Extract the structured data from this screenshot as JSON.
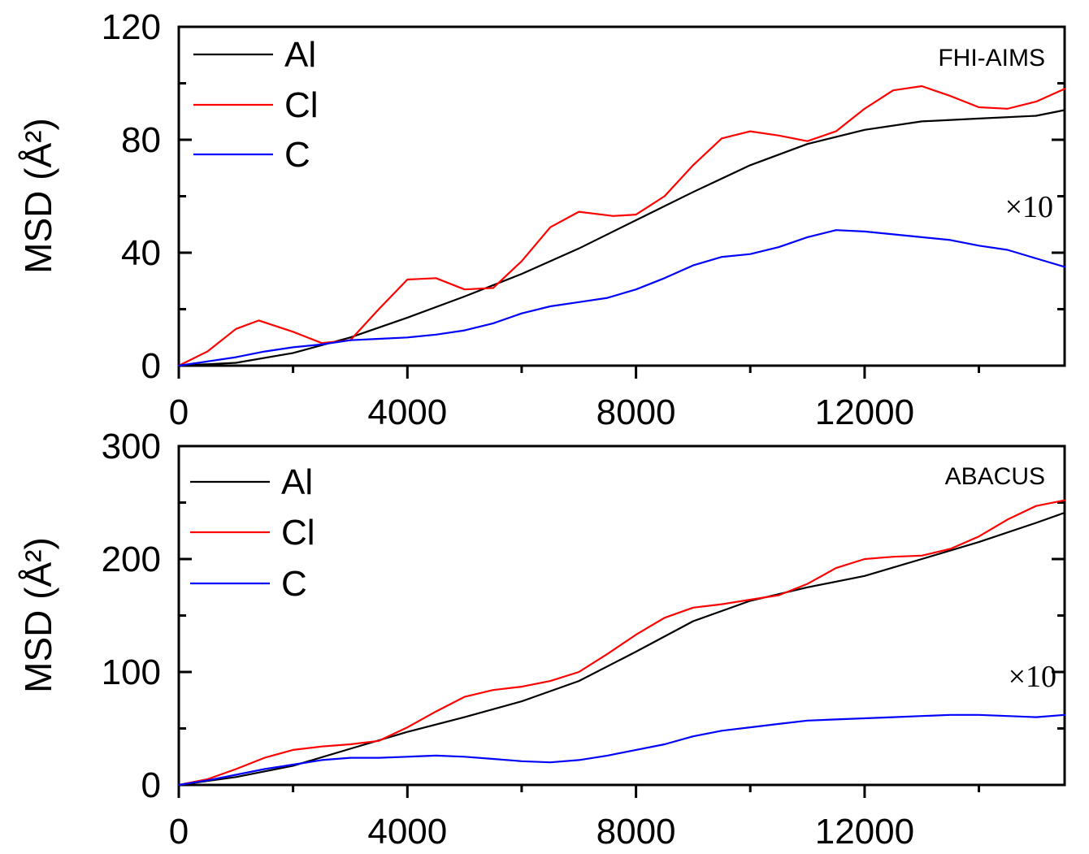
{
  "chart_data": [
    {
      "type": "line",
      "annotation": "FHI-AIMS",
      "scale_note": "×10",
      "xlabel": "",
      "ylabel": "MSD (Å²)",
      "xlim": [
        0,
        15500
      ],
      "ylim": [
        0,
        120
      ],
      "xticks": [
        "0",
        "4000",
        "8000",
        "12000"
      ],
      "yticks": [
        "0",
        "40",
        "80",
        "120"
      ],
      "legend": [
        "Al",
        "Cl",
        "C"
      ],
      "colors": {
        "Al": "#000000",
        "Cl": "#ff0000",
        "C": "#0000ff"
      },
      "series": [
        {
          "name": "Al",
          "x": [
            0,
            1000,
            2000,
            3000,
            4000,
            5000,
            6000,
            7000,
            8000,
            9000,
            10000,
            11000,
            12000,
            13000,
            14000,
            15000,
            15500
          ],
          "values": [
            0,
            1,
            4.5,
            10,
            17,
            24.5,
            32.5,
            41.5,
            51.5,
            61.5,
            71,
            78.5,
            83.5,
            86.5,
            87.5,
            88.5,
            90.5
          ]
        },
        {
          "name": "Cl",
          "x": [
            0,
            500,
            1000,
            1400,
            2000,
            2500,
            3000,
            3500,
            4000,
            4500,
            5000,
            5500,
            6000,
            6500,
            7000,
            7600,
            8000,
            8500,
            9000,
            9500,
            10000,
            10500,
            11000,
            11500,
            12000,
            12500,
            13000,
            13500,
            14000,
            14500,
            15000,
            15500
          ],
          "values": [
            0,
            5,
            13,
            16,
            12,
            8,
            9,
            20,
            30.5,
            31,
            27,
            27.5,
            37,
            49,
            54.5,
            53,
            53.5,
            60,
            71,
            80.5,
            83,
            81.5,
            79.5,
            83,
            91,
            97.5,
            99,
            95.5,
            91.5,
            91,
            93.5,
            98
          ]
        },
        {
          "name": "C",
          "x": [
            0,
            500,
            1000,
            1500,
            2000,
            2500,
            3000,
            3500,
            4000,
            4500,
            5000,
            5500,
            6000,
            6500,
            7000,
            7500,
            8000,
            8500,
            9000,
            9500,
            10000,
            10500,
            11000,
            11500,
            12000,
            12500,
            13000,
            13500,
            14000,
            14500,
            15000,
            15500
          ],
          "values": [
            0,
            1.5,
            3,
            5,
            6.5,
            7.5,
            9,
            9.5,
            10,
            11,
            12.5,
            15,
            18.5,
            21,
            22.5,
            24,
            27,
            31,
            35.5,
            38.5,
            39.5,
            42,
            45.5,
            48,
            47.5,
            46.5,
            45.5,
            44.5,
            42.5,
            41,
            38,
            35
          ]
        }
      ]
    },
    {
      "type": "line",
      "annotation": "ABACUS",
      "scale_note": "×10",
      "xlabel": "",
      "ylabel": "MSD (Å²)",
      "xlim": [
        0,
        15500
      ],
      "ylim": [
        0,
        300
      ],
      "xticks": [
        "0",
        "4000",
        "8000",
        "12000"
      ],
      "yticks": [
        "0",
        "100",
        "200",
        "300"
      ],
      "legend": [
        "Al",
        "Cl",
        "C"
      ],
      "colors": {
        "Al": "#000000",
        "Cl": "#ff0000",
        "C": "#0000ff"
      },
      "series": [
        {
          "name": "Al",
          "x": [
            0,
            1000,
            2000,
            3000,
            4000,
            5000,
            6000,
            7000,
            8000,
            9000,
            10000,
            11000,
            12000,
            13000,
            14000,
            15000,
            15500
          ],
          "values": [
            0,
            7,
            17,
            32,
            47,
            60,
            74,
            92,
            118,
            145,
            163,
            175,
            185,
            200,
            215,
            232,
            241
          ]
        },
        {
          "name": "Cl",
          "x": [
            0,
            500,
            1000,
            1500,
            2000,
            2500,
            3000,
            3500,
            4000,
            4500,
            5000,
            5500,
            6000,
            6500,
            7000,
            7500,
            8000,
            8500,
            9000,
            9500,
            10000,
            10500,
            11000,
            11500,
            12000,
            12500,
            13000,
            13500,
            14000,
            14500,
            15000,
            15500
          ],
          "values": [
            0,
            5,
            14,
            24,
            31,
            34,
            36,
            39,
            51,
            65,
            78,
            84,
            87,
            92,
            100,
            116,
            133,
            148,
            157,
            160,
            164,
            168,
            178,
            192,
            200,
            202,
            203,
            209,
            220,
            235,
            247,
            252
          ]
        },
        {
          "name": "C",
          "x": [
            0,
            500,
            1000,
            1500,
            2000,
            2500,
            3000,
            3500,
            4000,
            4500,
            5000,
            5500,
            6000,
            6500,
            7000,
            7500,
            8000,
            8500,
            9000,
            9500,
            10000,
            10500,
            11000,
            11500,
            12000,
            12500,
            13000,
            13500,
            14000,
            14500,
            15000,
            15500
          ],
          "values": [
            0,
            4,
            9,
            14,
            18,
            22,
            24,
            24,
            25,
            26,
            25,
            23,
            21,
            20,
            22,
            26,
            31,
            36,
            43,
            48,
            51,
            54,
            57,
            58,
            59,
            60,
            61,
            62,
            62,
            61,
            60,
            62
          ]
        }
      ]
    }
  ]
}
